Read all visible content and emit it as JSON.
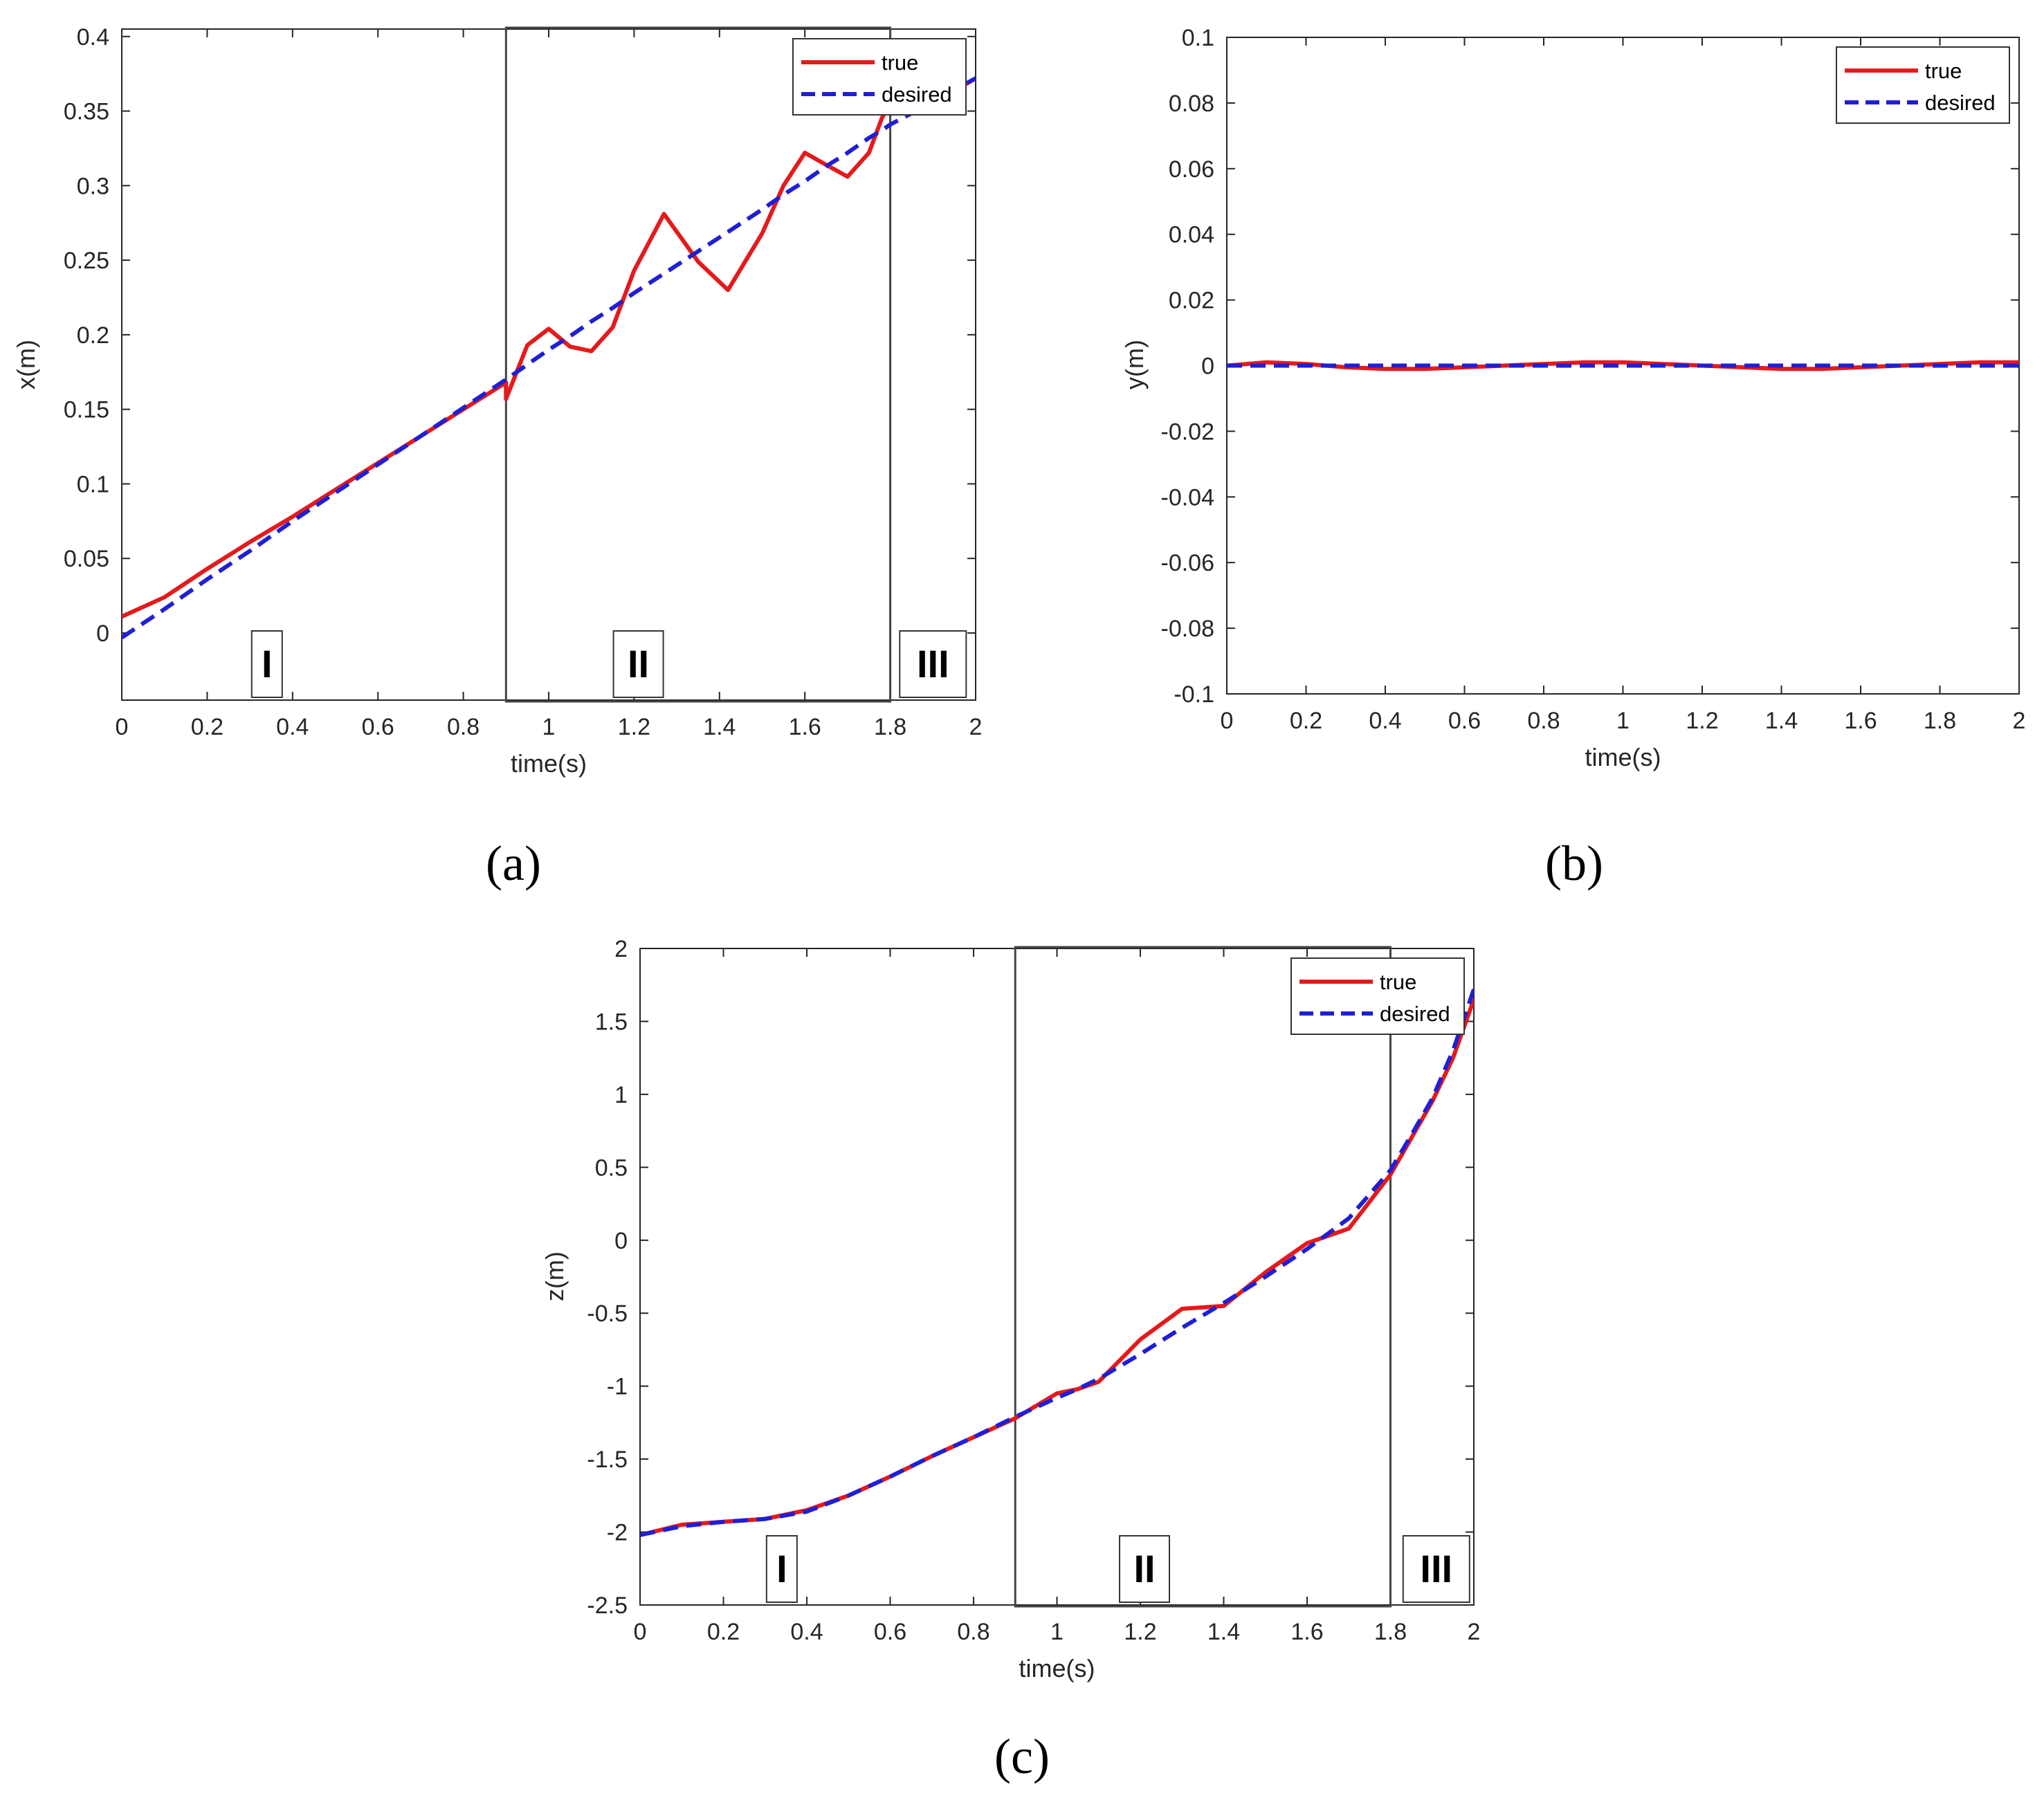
{
  "colors": {
    "true_series": "#e41a1c",
    "desired_series": "#1f1fd6",
    "axis": "#262626",
    "region_box": "#444444"
  },
  "chart_data": [
    {
      "panel": "a",
      "caption": "(a)",
      "type": "line",
      "xlabel": "time(s)",
      "ylabel": "x(m)",
      "xlim": [
        0,
        2
      ],
      "ylim": [
        -0.045,
        0.405
      ],
      "xticks": [
        "0",
        "0.2",
        "0.4",
        "0.6",
        "0.8",
        "1",
        "1.2",
        "1.4",
        "1.6",
        "1.8",
        "2"
      ],
      "yticks": [
        "0",
        "0.05",
        "0.1",
        "0.15",
        "0.2",
        "0.25",
        "0.3",
        "0.35",
        "0.4"
      ],
      "legend": {
        "position": "top-right",
        "entries": [
          "true",
          "desired"
        ]
      },
      "regions": [
        {
          "label": "I",
          "x_center": 0.34
        },
        {
          "label": "II",
          "x_center": 1.21,
          "box": [
            0.9,
            1.8
          ]
        },
        {
          "label": "III",
          "x_center": 1.9
        }
      ],
      "x": [
        0,
        0.1,
        0.2,
        0.3,
        0.4,
        0.5,
        0.6,
        0.7,
        0.8,
        0.9,
        0.9,
        0.95,
        1.0,
        1.05,
        1.1,
        1.15,
        1.2,
        1.27,
        1.35,
        1.42,
        1.5,
        1.55,
        1.6,
        1.65,
        1.7,
        1.75,
        1.78,
        1.8,
        1.9,
        2.0
      ],
      "series": [
        {
          "name": "true",
          "style": "solid",
          "values": [
            0.011,
            0.024,
            0.043,
            0.061,
            0.078,
            0.096,
            0.114,
            0.132,
            0.15,
            0.168,
            0.157,
            0.193,
            0.204,
            0.192,
            0.189,
            0.205,
            0.243,
            0.281,
            0.249,
            0.23,
            0.268,
            0.3,
            0.322,
            0.314,
            0.306,
            0.322,
            0.345,
            0.356,
            0.355,
            0.372
          ]
        },
        {
          "name": "desired",
          "style": "dashed",
          "values": [
            -0.003,
            0.016,
            0.036,
            0.055,
            0.075,
            0.094,
            0.113,
            0.132,
            0.151,
            0.17,
            0.17,
            0.18,
            0.19,
            0.199,
            0.209,
            0.218,
            0.228,
            0.241,
            0.256,
            0.269,
            0.284,
            0.294,
            0.303,
            0.313,
            0.322,
            0.332,
            0.337,
            0.341,
            0.356,
            0.372
          ]
        }
      ]
    },
    {
      "panel": "b",
      "caption": "(b)",
      "type": "line",
      "xlabel": "time(s)",
      "ylabel": "y(m)",
      "xlim": [
        0,
        2
      ],
      "ylim": [
        -0.1,
        0.1
      ],
      "xticks": [
        "0",
        "0.2",
        "0.4",
        "0.6",
        "0.8",
        "1",
        "1.2",
        "1.4",
        "1.6",
        "1.8",
        "2"
      ],
      "yticks": [
        "-0.1",
        "-0.08",
        "-0.06",
        "-0.04",
        "-0.02",
        "0",
        "0.02",
        "0.04",
        "0.06",
        "0.08",
        "0.1"
      ],
      "legend": {
        "position": "top-right",
        "entries": [
          "true",
          "desired"
        ]
      },
      "x": [
        0,
        0.1,
        0.2,
        0.3,
        0.4,
        0.5,
        0.6,
        0.7,
        0.8,
        0.9,
        1.0,
        1.1,
        1.2,
        1.3,
        1.4,
        1.5,
        1.6,
        1.7,
        1.8,
        1.9,
        2.0
      ],
      "series": [
        {
          "name": "true",
          "style": "solid",
          "values": [
            0.0,
            0.001,
            0.0005,
            -0.0005,
            -0.001,
            -0.001,
            -0.0005,
            0.0,
            0.0005,
            0.001,
            0.001,
            0.0005,
            0.0,
            -0.0005,
            -0.001,
            -0.001,
            -0.0005,
            0.0,
            0.0005,
            0.001,
            0.001
          ]
        },
        {
          "name": "desired",
          "style": "dashed",
          "values": [
            0,
            0,
            0,
            0,
            0,
            0,
            0,
            0,
            0,
            0,
            0,
            0,
            0,
            0,
            0,
            0,
            0,
            0,
            0,
            0,
            0
          ]
        }
      ]
    },
    {
      "panel": "c",
      "caption": "(c)",
      "type": "line",
      "xlabel": "time(s)",
      "ylabel": "z(m)",
      "xlim": [
        0,
        2
      ],
      "ylim": [
        -2.5,
        2
      ],
      "xticks": [
        "0",
        "0.2",
        "0.4",
        "0.6",
        "0.8",
        "1",
        "1.2",
        "1.4",
        "1.6",
        "1.8",
        "2"
      ],
      "yticks": [
        "-2.5",
        "-2",
        "-1.5",
        "-1",
        "-0.5",
        "0",
        "0.5",
        "1",
        "1.5",
        "2"
      ],
      "legend": {
        "position": "top-right",
        "entries": [
          "true",
          "desired"
        ]
      },
      "regions": [
        {
          "label": "I",
          "x_center": 0.34
        },
        {
          "label": "II",
          "x_center": 1.21,
          "box": [
            0.9,
            1.8
          ]
        },
        {
          "label": "III",
          "x_center": 1.91
        }
      ],
      "x": [
        0,
        0.1,
        0.2,
        0.3,
        0.4,
        0.5,
        0.6,
        0.7,
        0.8,
        0.9,
        1.0,
        1.05,
        1.1,
        1.2,
        1.3,
        1.4,
        1.5,
        1.6,
        1.7,
        1.8,
        1.85,
        1.9,
        1.95,
        2.0
      ],
      "series": [
        {
          "name": "true",
          "style": "solid",
          "values": [
            -2.02,
            -1.95,
            -1.93,
            -1.91,
            -1.85,
            -1.75,
            -1.62,
            -1.48,
            -1.35,
            -1.22,
            -1.05,
            -1.02,
            -0.97,
            -0.68,
            -0.47,
            -0.45,
            -0.22,
            -0.02,
            0.08,
            0.45,
            0.7,
            0.95,
            1.25,
            1.65
          ]
        },
        {
          "name": "desired",
          "style": "dashed",
          "values": [
            -2.02,
            -1.96,
            -1.93,
            -1.91,
            -1.86,
            -1.75,
            -1.62,
            -1.48,
            -1.35,
            -1.21,
            -1.08,
            -1.02,
            -0.95,
            -0.78,
            -0.6,
            -0.43,
            -0.25,
            -0.06,
            0.15,
            0.48,
            0.72,
            0.97,
            1.3,
            1.72
          ]
        }
      ]
    }
  ]
}
